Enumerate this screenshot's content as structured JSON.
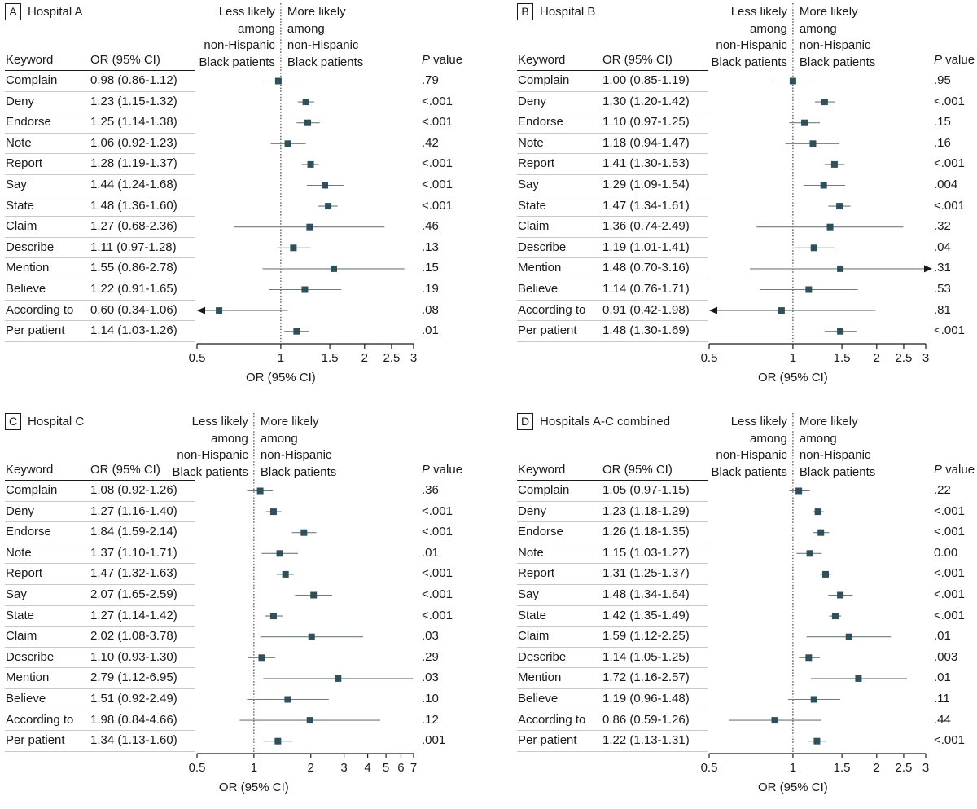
{
  "colors": {
    "marker": "#2f4f5b",
    "ci_line": "#6d7b80",
    "axis": "#1a1a1a",
    "separator": "#c8c8c8"
  },
  "headers": {
    "keyword": "Keyword",
    "or": "OR (95% CI)",
    "p_italic": "P",
    "p_rest": " value",
    "less_likely": [
      "Less likely",
      "among",
      "non-Hispanic",
      "Black patients"
    ],
    "more_likely": [
      "More likely",
      "among",
      "non-Hispanic",
      "Black patients"
    ]
  },
  "chart_data": [
    {
      "type": "forest",
      "tag": "A",
      "title": "Hospital A",
      "xlabel": "OR (95% CI)",
      "xscale": "log",
      "reference_line": 1,
      "ticks": [
        0.5,
        1,
        1.5,
        2,
        2.5,
        3
      ],
      "tick_labels": [
        "0.5",
        "1",
        "1.5",
        "2",
        "2.5",
        "3"
      ],
      "xlim": [
        0.5,
        3
      ],
      "rows": [
        {
          "keyword": "Complain",
          "or_text": "0.98 (0.86-1.12)",
          "or": 0.98,
          "lo": 0.86,
          "hi": 1.12,
          "p": ".79"
        },
        {
          "keyword": "Deny",
          "or_text": "1.23 (1.15-1.32)",
          "or": 1.23,
          "lo": 1.15,
          "hi": 1.32,
          "p": "<.001"
        },
        {
          "keyword": "Endorse",
          "or_text": "1.25 (1.14-1.38)",
          "or": 1.25,
          "lo": 1.14,
          "hi": 1.38,
          "p": "<.001"
        },
        {
          "keyword": "Note",
          "or_text": "1.06 (0.92-1.23)",
          "or": 1.06,
          "lo": 0.92,
          "hi": 1.23,
          "p": ".42"
        },
        {
          "keyword": "Report",
          "or_text": "1.28 (1.19-1.37)",
          "or": 1.28,
          "lo": 1.19,
          "hi": 1.37,
          "p": "<.001"
        },
        {
          "keyword": "Say",
          "or_text": "1.44 (1.24-1.68)",
          "or": 1.44,
          "lo": 1.24,
          "hi": 1.68,
          "p": "<.001"
        },
        {
          "keyword": "State",
          "or_text": "1.48 (1.36-1.60)",
          "or": 1.48,
          "lo": 1.36,
          "hi": 1.6,
          "p": "<.001"
        },
        {
          "keyword": "Claim",
          "or_text": "1.27 (0.68-2.36)",
          "or": 1.27,
          "lo": 0.68,
          "hi": 2.36,
          "p": ".46"
        },
        {
          "keyword": "Describe",
          "or_text": "1.11 (0.97-1.28)",
          "or": 1.11,
          "lo": 0.97,
          "hi": 1.28,
          "p": ".13"
        },
        {
          "keyword": "Mention",
          "or_text": "1.55 (0.86-2.78)",
          "or": 1.55,
          "lo": 0.86,
          "hi": 2.78,
          "p": ".15"
        },
        {
          "keyword": "Believe",
          "or_text": "1.22 (0.91-1.65)",
          "or": 1.22,
          "lo": 0.91,
          "hi": 1.65,
          "p": ".19"
        },
        {
          "keyword": "According to",
          "or_text": "0.60 (0.34-1.06)",
          "or": 0.6,
          "lo": 0.34,
          "hi": 1.06,
          "p": ".08"
        },
        {
          "keyword": "Per patient",
          "or_text": "1.14 (1.03-1.26)",
          "or": 1.14,
          "lo": 1.03,
          "hi": 1.26,
          "p": ".01"
        }
      ]
    },
    {
      "type": "forest",
      "tag": "B",
      "title": "Hospital B",
      "xlabel": "OR (95% CI)",
      "xscale": "log",
      "reference_line": 1,
      "ticks": [
        0.5,
        1,
        1.5,
        2,
        2.5,
        3
      ],
      "tick_labels": [
        "0.5",
        "1",
        "1.5",
        "2",
        "2.5",
        "3"
      ],
      "xlim": [
        0.5,
        3
      ],
      "rows": [
        {
          "keyword": "Complain",
          "or_text": "1.00 (0.85-1.19)",
          "or": 1.0,
          "lo": 0.85,
          "hi": 1.19,
          "p": ".95"
        },
        {
          "keyword": "Deny",
          "or_text": "1.30 (1.20-1.42)",
          "or": 1.3,
          "lo": 1.2,
          "hi": 1.42,
          "p": "<.001"
        },
        {
          "keyword": "Endorse",
          "or_text": "1.10 (0.97-1.25)",
          "or": 1.1,
          "lo": 0.97,
          "hi": 1.25,
          "p": ".15"
        },
        {
          "keyword": "Note",
          "or_text": "1.18 (0.94-1.47)",
          "or": 1.18,
          "lo": 0.94,
          "hi": 1.47,
          "p": ".16"
        },
        {
          "keyword": "Report",
          "or_text": "1.41 (1.30-1.53)",
          "or": 1.41,
          "lo": 1.3,
          "hi": 1.53,
          "p": "<.001"
        },
        {
          "keyword": "Say",
          "or_text": "1.29 (1.09-1.54)",
          "or": 1.29,
          "lo": 1.09,
          "hi": 1.54,
          "p": ".004"
        },
        {
          "keyword": "State",
          "or_text": "1.47 (1.34-1.61)",
          "or": 1.47,
          "lo": 1.34,
          "hi": 1.61,
          "p": "<.001"
        },
        {
          "keyword": "Claim",
          "or_text": "1.36 (0.74-2.49)",
          "or": 1.36,
          "lo": 0.74,
          "hi": 2.49,
          "p": ".32"
        },
        {
          "keyword": "Describe",
          "or_text": "1.19 (1.01-1.41)",
          "or": 1.19,
          "lo": 1.01,
          "hi": 1.41,
          "p": ".04"
        },
        {
          "keyword": "Mention",
          "or_text": "1.48 (0.70-3.16)",
          "or": 1.48,
          "lo": 0.7,
          "hi": 3.16,
          "p": ".31"
        },
        {
          "keyword": "Believe",
          "or_text": "1.14 (0.76-1.71)",
          "or": 1.14,
          "lo": 0.76,
          "hi": 1.71,
          "p": ".53"
        },
        {
          "keyword": "According to",
          "or_text": "0.91 (0.42-1.98)",
          "or": 0.91,
          "lo": 0.42,
          "hi": 1.98,
          "p": ".81"
        },
        {
          "keyword": "Per patient",
          "or_text": "1.48 (1.30-1.69)",
          "or": 1.48,
          "lo": 1.3,
          "hi": 1.69,
          "p": "<.001"
        }
      ]
    },
    {
      "type": "forest",
      "tag": "C",
      "title": "Hospital C",
      "xlabel": "OR (95% CI)",
      "xscale": "log",
      "reference_line": 1,
      "ticks": [
        0.5,
        1,
        2,
        3,
        4,
        5,
        6,
        7
      ],
      "tick_labels": [
        "0.5",
        "1",
        "2",
        "3",
        "4",
        "5",
        "6",
        "7"
      ],
      "xlim": [
        0.5,
        7
      ],
      "rows": [
        {
          "keyword": "Complain",
          "or_text": "1.08 (0.92-1.26)",
          "or": 1.08,
          "lo": 0.92,
          "hi": 1.26,
          "p": ".36"
        },
        {
          "keyword": "Deny",
          "or_text": "1.27 (1.16-1.40)",
          "or": 1.27,
          "lo": 1.16,
          "hi": 1.4,
          "p": "<.001"
        },
        {
          "keyword": "Endorse",
          "or_text": "1.84 (1.59-2.14)",
          "or": 1.84,
          "lo": 1.59,
          "hi": 2.14,
          "p": "<.001"
        },
        {
          "keyword": "Note",
          "or_text": "1.37 (1.10-1.71)",
          "or": 1.37,
          "lo": 1.1,
          "hi": 1.71,
          "p": ".01"
        },
        {
          "keyword": "Report",
          "or_text": "1.47 (1.32-1.63)",
          "or": 1.47,
          "lo": 1.32,
          "hi": 1.63,
          "p": "<.001"
        },
        {
          "keyword": "Say",
          "or_text": "2.07 (1.65-2.59)",
          "or": 2.07,
          "lo": 1.65,
          "hi": 2.59,
          "p": "<.001"
        },
        {
          "keyword": "State",
          "or_text": "1.27 (1.14-1.42)",
          "or": 1.27,
          "lo": 1.14,
          "hi": 1.42,
          "p": "<.001"
        },
        {
          "keyword": "Claim",
          "or_text": "2.02 (1.08-3.78)",
          "or": 2.02,
          "lo": 1.08,
          "hi": 3.78,
          "p": ".03"
        },
        {
          "keyword": "Describe",
          "or_text": "1.10 (0.93-1.30)",
          "or": 1.1,
          "lo": 0.93,
          "hi": 1.3,
          "p": ".29"
        },
        {
          "keyword": "Mention",
          "or_text": "2.79 (1.12-6.95)",
          "or": 2.79,
          "lo": 1.12,
          "hi": 6.95,
          "p": ".03"
        },
        {
          "keyword": "Believe",
          "or_text": "1.51 (0.92-2.49)",
          "or": 1.51,
          "lo": 0.92,
          "hi": 2.49,
          "p": ".10"
        },
        {
          "keyword": "According to",
          "or_text": "1.98 (0.84-4.66)",
          "or": 1.98,
          "lo": 0.84,
          "hi": 4.66,
          "p": ".12"
        },
        {
          "keyword": "Per patient",
          "or_text": "1.34 (1.13-1.60)",
          "or": 1.34,
          "lo": 1.13,
          "hi": 1.6,
          "p": ".001"
        }
      ]
    },
    {
      "type": "forest",
      "tag": "D",
      "title": "Hospitals A-C combined",
      "xlabel": "OR (95% CI)",
      "xscale": "log",
      "reference_line": 1,
      "ticks": [
        0.5,
        1,
        1.5,
        2,
        2.5,
        3
      ],
      "tick_labels": [
        "0.5",
        "1",
        "1.5",
        "2",
        "2.5",
        "3"
      ],
      "xlim": [
        0.5,
        3
      ],
      "rows": [
        {
          "keyword": "Complain",
          "or_text": "1.05 (0.97-1.15)",
          "or": 1.05,
          "lo": 0.97,
          "hi": 1.15,
          "p": ".22"
        },
        {
          "keyword": "Deny",
          "or_text": "1.23 (1.18-1.29)",
          "or": 1.23,
          "lo": 1.18,
          "hi": 1.29,
          "p": "<.001"
        },
        {
          "keyword": "Endorse",
          "or_text": "1.26 (1.18-1.35)",
          "or": 1.26,
          "lo": 1.18,
          "hi": 1.35,
          "p": "<.001"
        },
        {
          "keyword": "Note",
          "or_text": "1.15 (1.03-1.27)",
          "or": 1.15,
          "lo": 1.03,
          "hi": 1.27,
          "p": "0.00"
        },
        {
          "keyword": "Report",
          "or_text": "1.31 (1.25-1.37)",
          "or": 1.31,
          "lo": 1.25,
          "hi": 1.37,
          "p": "<.001"
        },
        {
          "keyword": "Say",
          "or_text": "1.48 (1.34-1.64)",
          "or": 1.48,
          "lo": 1.34,
          "hi": 1.64,
          "p": "<.001"
        },
        {
          "keyword": "State",
          "or_text": "1.42 (1.35-1.49)",
          "or": 1.42,
          "lo": 1.35,
          "hi": 1.49,
          "p": "<.001"
        },
        {
          "keyword": "Claim",
          "or_text": "1.59 (1.12-2.25)",
          "or": 1.59,
          "lo": 1.12,
          "hi": 2.25,
          "p": ".01"
        },
        {
          "keyword": "Describe",
          "or_text": "1.14 (1.05-1.25)",
          "or": 1.14,
          "lo": 1.05,
          "hi": 1.25,
          "p": ".003"
        },
        {
          "keyword": "Mention",
          "or_text": "1.72 (1.16-2.57)",
          "or": 1.72,
          "lo": 1.16,
          "hi": 2.57,
          "p": ".01"
        },
        {
          "keyword": "Believe",
          "or_text": "1.19 (0.96-1.48)",
          "or": 1.19,
          "lo": 0.96,
          "hi": 1.48,
          "p": ".11"
        },
        {
          "keyword": "According to",
          "or_text": "0.86 (0.59-1.26)",
          "or": 0.86,
          "lo": 0.59,
          "hi": 1.26,
          "p": ".44"
        },
        {
          "keyword": "Per patient",
          "or_text": "1.22 (1.13-1.31)",
          "or": 1.22,
          "lo": 1.13,
          "hi": 1.31,
          "p": "<.001"
        }
      ]
    }
  ]
}
